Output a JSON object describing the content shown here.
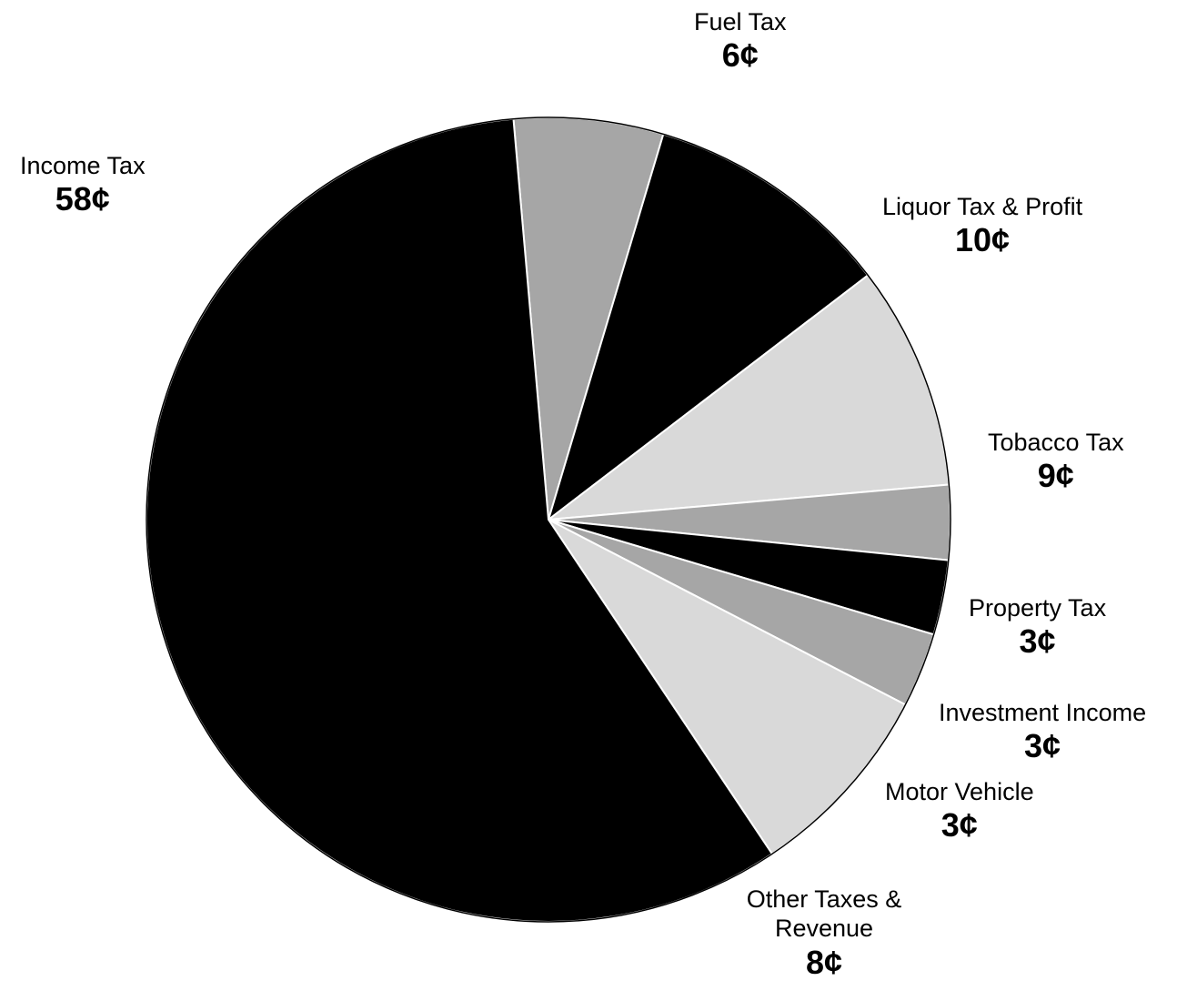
{
  "chart_data": {
    "type": "pie",
    "unit": "¢",
    "slices": [
      {
        "label": "Fuel Tax",
        "value": 6,
        "value_label": "6¢",
        "color": "#a6a6a6"
      },
      {
        "label": "Liquor Tax & Profit",
        "value": 10,
        "value_label": "10¢",
        "color": "#000000"
      },
      {
        "label": "Tobacco Tax",
        "value": 9,
        "value_label": "9¢",
        "color": "#d9d9d9"
      },
      {
        "label": "Property Tax",
        "value": 3,
        "value_label": "3¢",
        "color": "#a6a6a6"
      },
      {
        "label": "Investment Income",
        "value": 3,
        "value_label": "3¢",
        "color": "#000000"
      },
      {
        "label": "Motor Vehicle",
        "value": 3,
        "value_label": "3¢",
        "color": "#a6a6a6"
      },
      {
        "label": "Other Taxes & Revenue",
        "value_label": "8¢",
        "value": 8,
        "color": "#d9d9d9"
      },
      {
        "label": "Income Tax",
        "value": 58,
        "value_label": "58¢",
        "color": "#000000"
      }
    ]
  }
}
